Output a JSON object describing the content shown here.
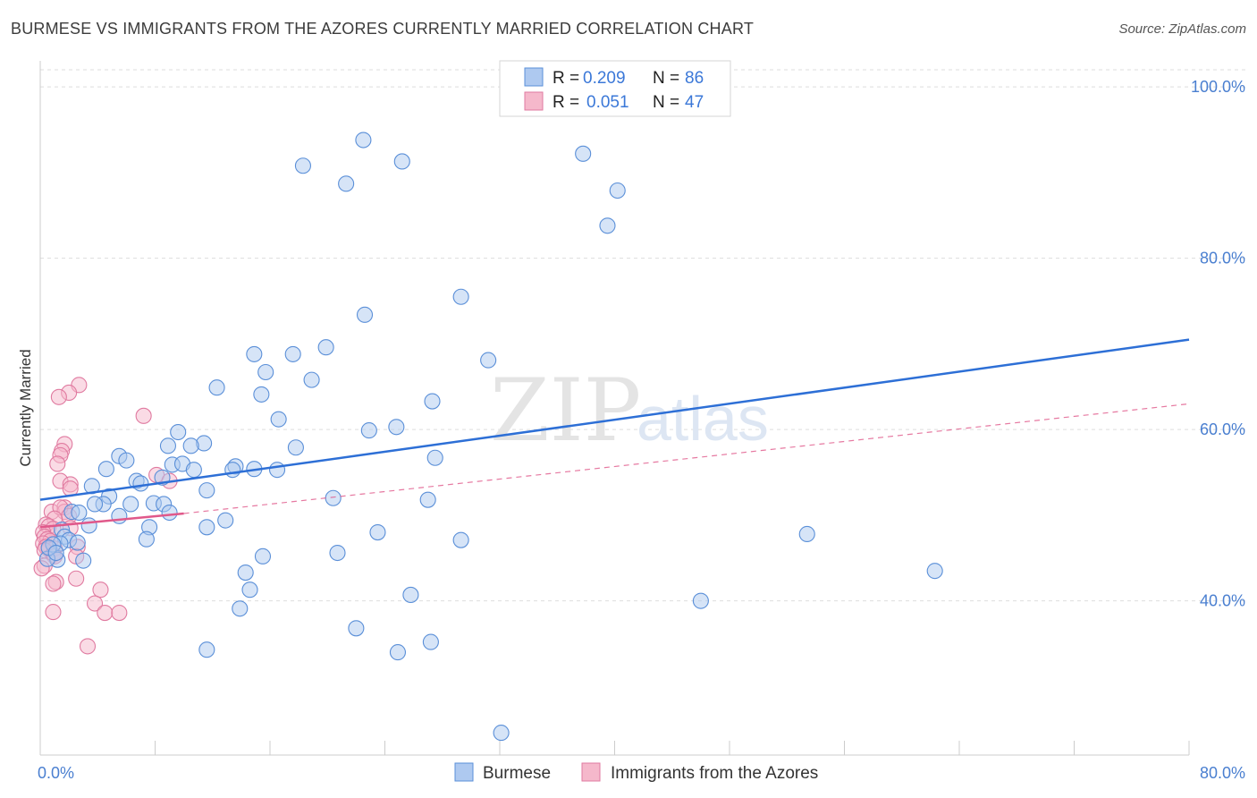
{
  "title": "BURMESE VS IMMIGRANTS FROM THE AZORES CURRENTLY MARRIED CORRELATION CHART",
  "source": "Source: ZipAtlas.com",
  "watermark": {
    "zip": "ZIP",
    "atlas": "atlas"
  },
  "colors": {
    "blue_fill": "#aec9f0",
    "blue_stroke": "#5a8fd8",
    "blue_line": "#2d6fd6",
    "pink_fill": "#f5b8cb",
    "pink_stroke": "#e07aa0",
    "pink_line": "#e0588a",
    "grid": "#dddddd",
    "tick_text": "#4a7fd0"
  },
  "legend": {
    "rows": [
      {
        "r_label": "R =",
        "r_value": "0.209",
        "n_label": "N =",
        "n_value": "86"
      },
      {
        "r_label": "R =",
        "r_value": "0.051",
        "n_label": "N =",
        "n_value": "47"
      }
    ]
  },
  "chart_data": {
    "type": "scatter",
    "title": "BURMESE VS IMMIGRANTS FROM THE AZORES CURRENTLY MARRIED CORRELATION CHART",
    "xlabel": "",
    "ylabel": "Currently Married",
    "xlim": [
      0,
      80
    ],
    "ylim": [
      22,
      102
    ],
    "x_tick_labels": [
      "0.0%",
      "80.0%"
    ],
    "y_ticks": [
      40,
      60,
      80,
      100
    ],
    "y_tick_labels": [
      "40.0%",
      "60.0%",
      "80.0%",
      "100.0%"
    ],
    "grid": true,
    "legend_position": "bottom-center",
    "series": [
      {
        "name": "Burmese",
        "color": "#aec9f0",
        "trend": {
          "x": [
            0,
            80
          ],
          "y": [
            51.8,
            70.5
          ]
        },
        "points": [
          [
            22.5,
            93.8
          ],
          [
            18.3,
            90.8
          ],
          [
            21.3,
            88.7
          ],
          [
            25.2,
            91.3
          ],
          [
            37.8,
            92.2
          ],
          [
            40.2,
            87.9
          ],
          [
            39.5,
            83.8
          ],
          [
            29.3,
            75.5
          ],
          [
            22.6,
            73.4
          ],
          [
            19.9,
            69.6
          ],
          [
            31.2,
            68.1
          ],
          [
            14.9,
            68.8
          ],
          [
            17.6,
            68.8
          ],
          [
            15.7,
            66.7
          ],
          [
            18.9,
            65.8
          ],
          [
            12.3,
            64.9
          ],
          [
            15.4,
            64.1
          ],
          [
            27.3,
            63.3
          ],
          [
            16.6,
            61.2
          ],
          [
            24.8,
            60.3
          ],
          [
            22.9,
            59.9
          ],
          [
            9.6,
            59.7
          ],
          [
            11.4,
            58.4
          ],
          [
            10.5,
            58.1
          ],
          [
            8.9,
            58.1
          ],
          [
            17.8,
            57.9
          ],
          [
            27.5,
            56.7
          ],
          [
            5.5,
            56.9
          ],
          [
            6.0,
            56.4
          ],
          [
            9.2,
            55.9
          ],
          [
            9.9,
            56.0
          ],
          [
            13.6,
            55.7
          ],
          [
            4.6,
            55.4
          ],
          [
            10.7,
            55.3
          ],
          [
            13.4,
            55.3
          ],
          [
            16.5,
            55.3
          ],
          [
            14.9,
            55.4
          ],
          [
            8.5,
            54.4
          ],
          [
            6.7,
            54.0
          ],
          [
            7.0,
            53.7
          ],
          [
            3.6,
            53.4
          ],
          [
            11.6,
            52.9
          ],
          [
            4.8,
            52.2
          ],
          [
            4.4,
            51.3
          ],
          [
            20.4,
            52.0
          ],
          [
            27.0,
            51.8
          ],
          [
            7.9,
            51.4
          ],
          [
            6.3,
            51.3
          ],
          [
            3.8,
            51.3
          ],
          [
            8.6,
            51.3
          ],
          [
            9.0,
            50.3
          ],
          [
            2.2,
            50.4
          ],
          [
            2.7,
            50.3
          ],
          [
            5.5,
            49.9
          ],
          [
            12.9,
            49.4
          ],
          [
            3.4,
            48.8
          ],
          [
            7.6,
            48.6
          ],
          [
            11.6,
            48.6
          ],
          [
            23.5,
            48.0
          ],
          [
            1.5,
            48.3
          ],
          [
            53.4,
            47.8
          ],
          [
            29.3,
            47.1
          ],
          [
            7.4,
            47.2
          ],
          [
            1.7,
            47.5
          ],
          [
            2.0,
            47.1
          ],
          [
            2.6,
            46.8
          ],
          [
            1.4,
            46.7
          ],
          [
            0.9,
            46.6
          ],
          [
            20.7,
            45.6
          ],
          [
            15.5,
            45.2
          ],
          [
            3.0,
            44.7
          ],
          [
            1.2,
            44.8
          ],
          [
            0.5,
            44.9
          ],
          [
            62.3,
            43.5
          ],
          [
            14.3,
            43.3
          ],
          [
            14.6,
            41.3
          ],
          [
            25.8,
            40.7
          ],
          [
            46.0,
            40.0
          ],
          [
            13.9,
            39.1
          ],
          [
            22.0,
            36.8
          ],
          [
            27.2,
            35.2
          ],
          [
            11.6,
            34.3
          ],
          [
            24.9,
            34.0
          ],
          [
            32.1,
            24.6
          ],
          [
            0.6,
            46.2
          ],
          [
            1.1,
            45.6
          ]
        ]
      },
      {
        "name": "Immigrants from the Azores",
        "color": "#f5b8cb",
        "trend": {
          "x": [
            0,
            10
          ],
          "y": [
            48.6,
            50.2
          ]
        },
        "trend_extension": {
          "x": [
            10,
            80
          ],
          "y": [
            50.2,
            63.0
          ]
        },
        "points": [
          [
            2.7,
            65.2
          ],
          [
            2.0,
            64.3
          ],
          [
            1.3,
            63.8
          ],
          [
            7.2,
            61.6
          ],
          [
            1.7,
            58.3
          ],
          [
            1.5,
            57.5
          ],
          [
            1.4,
            57.0
          ],
          [
            1.2,
            56.0
          ],
          [
            8.1,
            54.7
          ],
          [
            9.0,
            54.0
          ],
          [
            1.4,
            54.0
          ],
          [
            2.1,
            53.6
          ],
          [
            2.1,
            53.1
          ],
          [
            1.7,
            50.9
          ],
          [
            0.8,
            50.4
          ],
          [
            1.7,
            50.4
          ],
          [
            1.4,
            50.9
          ],
          [
            2.0,
            49.9
          ],
          [
            1.0,
            49.6
          ],
          [
            0.4,
            48.9
          ],
          [
            0.6,
            48.7
          ],
          [
            2.1,
            48.5
          ],
          [
            0.9,
            48.4
          ],
          [
            0.2,
            48.0
          ],
          [
            0.3,
            47.5
          ],
          [
            0.5,
            47.2
          ],
          [
            0.7,
            47.0
          ],
          [
            0.2,
            46.7
          ],
          [
            0.4,
            46.3
          ],
          [
            0.6,
            46.0
          ],
          [
            1.0,
            46.1
          ],
          [
            0.3,
            45.9
          ],
          [
            0.9,
            45.4
          ],
          [
            1.0,
            45.2
          ],
          [
            2.6,
            46.3
          ],
          [
            2.5,
            45.2
          ],
          [
            0.3,
            44.1
          ],
          [
            0.1,
            43.8
          ],
          [
            1.1,
            42.2
          ],
          [
            0.9,
            42.0
          ],
          [
            2.5,
            42.6
          ],
          [
            4.2,
            41.3
          ],
          [
            3.8,
            39.7
          ],
          [
            4.5,
            38.6
          ],
          [
            5.5,
            38.6
          ],
          [
            0.9,
            38.7
          ],
          [
            3.3,
            34.7
          ]
        ]
      }
    ]
  }
}
